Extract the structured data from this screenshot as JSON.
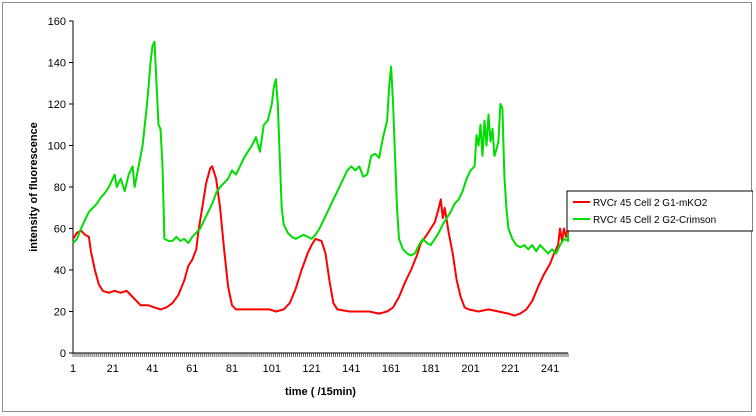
{
  "chart_data": {
    "type": "line",
    "xlabel": "time ( /15min)",
    "ylabel": "intensity of fluorescence",
    "ylim": [
      0,
      160
    ],
    "xlim": [
      1,
      250
    ],
    "yticks": [
      0,
      20,
      40,
      60,
      80,
      100,
      120,
      140,
      160
    ],
    "xticks": [
      1,
      21,
      41,
      61,
      81,
      101,
      121,
      141,
      161,
      181,
      201,
      221,
      241
    ],
    "grid": false,
    "legend_position": "right",
    "series": [
      {
        "name": "RVCr 45 Cell 2 G1-mKO2",
        "color": "#ff0000",
        "points": [
          [
            1,
            55
          ],
          [
            3,
            58
          ],
          [
            5,
            59
          ],
          [
            7,
            57
          ],
          [
            9,
            56
          ],
          [
            10,
            49
          ],
          [
            12,
            40
          ],
          [
            14,
            33
          ],
          [
            16,
            30
          ],
          [
            19,
            29
          ],
          [
            22,
            30
          ],
          [
            25,
            29
          ],
          [
            28,
            30
          ],
          [
            31,
            27
          ],
          [
            33,
            25
          ],
          [
            35,
            23
          ],
          [
            39,
            23
          ],
          [
            42,
            22
          ],
          [
            45,
            21
          ],
          [
            48,
            22
          ],
          [
            51,
            24
          ],
          [
            54,
            28
          ],
          [
            57,
            35
          ],
          [
            59,
            42
          ],
          [
            61,
            45
          ],
          [
            63,
            50
          ],
          [
            64,
            58
          ],
          [
            66,
            70
          ],
          [
            68,
            82
          ],
          [
            70,
            89
          ],
          [
            71,
            90
          ],
          [
            73,
            84
          ],
          [
            75,
            70
          ],
          [
            77,
            50
          ],
          [
            79,
            32
          ],
          [
            81,
            23
          ],
          [
            83,
            21
          ],
          [
            90,
            21
          ],
          [
            95,
            21
          ],
          [
            100,
            21
          ],
          [
            103,
            20
          ],
          [
            107,
            21
          ],
          [
            110,
            24
          ],
          [
            113,
            31
          ],
          [
            116,
            40
          ],
          [
            119,
            48
          ],
          [
            121,
            52
          ],
          [
            123,
            55
          ],
          [
            126,
            54
          ],
          [
            128,
            48
          ],
          [
            130,
            35
          ],
          [
            132,
            24
          ],
          [
            134,
            21
          ],
          [
            140,
            20
          ],
          [
            150,
            20
          ],
          [
            155,
            19
          ],
          [
            159,
            20
          ],
          [
            162,
            22
          ],
          [
            165,
            27
          ],
          [
            168,
            34
          ],
          [
            171,
            40
          ],
          [
            174,
            47
          ],
          [
            176,
            53
          ],
          [
            179,
            57
          ],
          [
            181,
            60
          ],
          [
            183,
            63
          ],
          [
            185,
            70
          ],
          [
            186,
            74
          ],
          [
            187,
            65
          ],
          [
            188,
            70
          ],
          [
            190,
            58
          ],
          [
            192,
            48
          ],
          [
            194,
            35
          ],
          [
            196,
            27
          ],
          [
            198,
            22
          ],
          [
            200,
            21
          ],
          [
            205,
            20
          ],
          [
            210,
            21
          ],
          [
            215,
            20
          ],
          [
            220,
            19
          ],
          [
            223,
            18
          ],
          [
            226,
            19
          ],
          [
            229,
            21
          ],
          [
            232,
            25
          ],
          [
            235,
            32
          ],
          [
            238,
            38
          ],
          [
            241,
            43
          ],
          [
            243,
            48
          ],
          [
            245,
            52
          ],
          [
            246,
            60
          ],
          [
            247,
            54
          ],
          [
            248,
            60
          ],
          [
            249,
            56
          ],
          [
            250,
            60
          ],
          [
            251,
            54
          ],
          [
            255,
            54
          ]
        ]
      },
      {
        "name": "RVCr 45 Cell 2 G2-Crimson",
        "color": "#00dd00",
        "points": [
          [
            1,
            53
          ],
          [
            3,
            55
          ],
          [
            5,
            60
          ],
          [
            7,
            64
          ],
          [
            9,
            68
          ],
          [
            11,
            70
          ],
          [
            13,
            72
          ],
          [
            15,
            75
          ],
          [
            17,
            77
          ],
          [
            19,
            80
          ],
          [
            20,
            82
          ],
          [
            22,
            86
          ],
          [
            23,
            80
          ],
          [
            25,
            84
          ],
          [
            27,
            78
          ],
          [
            29,
            86
          ],
          [
            31,
            90
          ],
          [
            32,
            80
          ],
          [
            34,
            90
          ],
          [
            36,
            100
          ],
          [
            38,
            118
          ],
          [
            39,
            128
          ],
          [
            40,
            140
          ],
          [
            41,
            148
          ],
          [
            42,
            150
          ],
          [
            43,
            130
          ],
          [
            44,
            110
          ],
          [
            45,
            108
          ],
          [
            46,
            90
          ],
          [
            47,
            55
          ],
          [
            49,
            54
          ],
          [
            51,
            54
          ],
          [
            53,
            56
          ],
          [
            55,
            54
          ],
          [
            57,
            55
          ],
          [
            59,
            53
          ],
          [
            61,
            56
          ],
          [
            63,
            58
          ],
          [
            65,
            60
          ],
          [
            67,
            64
          ],
          [
            69,
            68
          ],
          [
            71,
            72
          ],
          [
            73,
            77
          ],
          [
            75,
            80
          ],
          [
            77,
            82
          ],
          [
            79,
            84
          ],
          [
            81,
            88
          ],
          [
            83,
            86
          ],
          [
            85,
            90
          ],
          [
            87,
            94
          ],
          [
            89,
            97
          ],
          [
            91,
            100
          ],
          [
            93,
            104
          ],
          [
            95,
            97
          ],
          [
            97,
            110
          ],
          [
            99,
            112
          ],
          [
            101,
            120
          ],
          [
            102,
            128
          ],
          [
            103,
            132
          ],
          [
            104,
            120
          ],
          [
            105,
            95
          ],
          [
            106,
            70
          ],
          [
            107,
            62
          ],
          [
            109,
            58
          ],
          [
            111,
            56
          ],
          [
            113,
            55
          ],
          [
            115,
            56
          ],
          [
            117,
            57
          ],
          [
            119,
            56
          ],
          [
            121,
            55
          ],
          [
            123,
            57
          ],
          [
            125,
            60
          ],
          [
            127,
            64
          ],
          [
            129,
            68
          ],
          [
            131,
            72
          ],
          [
            133,
            76
          ],
          [
            135,
            80
          ],
          [
            137,
            84
          ],
          [
            139,
            88
          ],
          [
            141,
            90
          ],
          [
            143,
            88
          ],
          [
            145,
            90
          ],
          [
            147,
            85
          ],
          [
            149,
            86
          ],
          [
            151,
            95
          ],
          [
            153,
            96
          ],
          [
            155,
            94
          ],
          [
            157,
            104
          ],
          [
            159,
            112
          ],
          [
            160,
            128
          ],
          [
            161,
            138
          ],
          [
            162,
            120
          ],
          [
            163,
            95
          ],
          [
            164,
            70
          ],
          [
            165,
            55
          ],
          [
            167,
            50
          ],
          [
            169,
            48
          ],
          [
            171,
            47
          ],
          [
            173,
            48
          ],
          [
            175,
            52
          ],
          [
            177,
            55
          ],
          [
            179,
            53
          ],
          [
            181,
            52
          ],
          [
            183,
            55
          ],
          [
            185,
            58
          ],
          [
            187,
            62
          ],
          [
            189,
            65
          ],
          [
            191,
            68
          ],
          [
            193,
            72
          ],
          [
            195,
            74
          ],
          [
            197,
            78
          ],
          [
            199,
            84
          ],
          [
            201,
            88
          ],
          [
            203,
            90
          ],
          [
            204,
            105
          ],
          [
            205,
            100
          ],
          [
            206,
            110
          ],
          [
            207,
            95
          ],
          [
            208,
            112
          ],
          [
            209,
            100
          ],
          [
            210,
            115
          ],
          [
            211,
            102
          ],
          [
            212,
            108
          ],
          [
            213,
            95
          ],
          [
            214,
            98
          ],
          [
            215,
            102
          ],
          [
            216,
            120
          ],
          [
            217,
            118
          ],
          [
            218,
            85
          ],
          [
            219,
            70
          ],
          [
            220,
            60
          ],
          [
            222,
            55
          ],
          [
            224,
            52
          ],
          [
            226,
            51
          ],
          [
            228,
            52
          ],
          [
            230,
            50
          ],
          [
            232,
            52
          ],
          [
            234,
            49
          ],
          [
            236,
            52
          ],
          [
            238,
            50
          ],
          [
            240,
            48
          ],
          [
            242,
            50
          ],
          [
            244,
            48
          ],
          [
            246,
            52
          ],
          [
            248,
            55
          ],
          [
            250,
            54
          ],
          [
            252,
            56
          ],
          [
            254,
            55
          ],
          [
            255,
            58
          ]
        ]
      }
    ]
  }
}
